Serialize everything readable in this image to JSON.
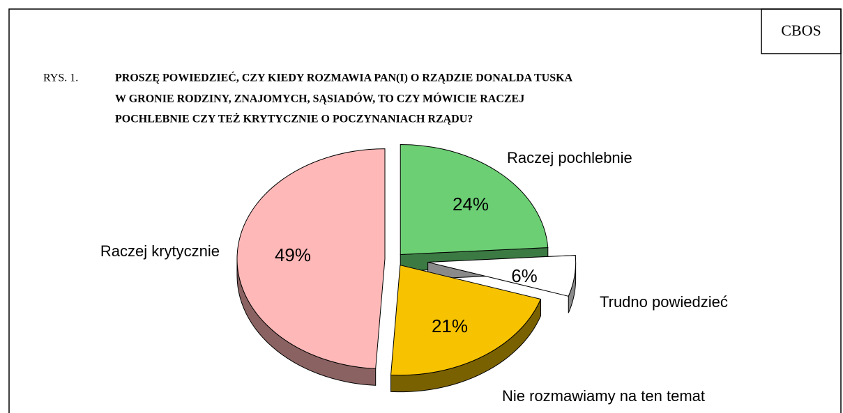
{
  "chart_data": {
    "type": "pie",
    "corner_label": "CBOS",
    "figure_label": "RYS. 1.",
    "title": [
      "PROSZĘ POWIEDZIEĆ, CZY KIEDY ROZMAWIA PAN(I) O RZĄDZIE DONALDA TUSKA",
      "W GRONIE RODZINY, ZNAJOMYCH, SĄSIADÓW, TO CZY MÓWICIE RACZEJ",
      "POCHLEBNIE CZY TEŻ KRYTYCZNIE O POCZYNANIACH RZĄDU?"
    ],
    "categories": [
      "Raczej pochlebnie",
      "Trudno powiedzieć",
      "Nie rozmawiamy na ten temat",
      "Raczej krytycznie"
    ],
    "values": [
      24,
      6,
      21,
      49
    ],
    "value_labels": [
      "24%",
      "6%",
      "21%",
      "49%"
    ],
    "colors": [
      "#6ccf74",
      "#ffffff",
      "#f7c200",
      "#ffb8b8"
    ]
  }
}
